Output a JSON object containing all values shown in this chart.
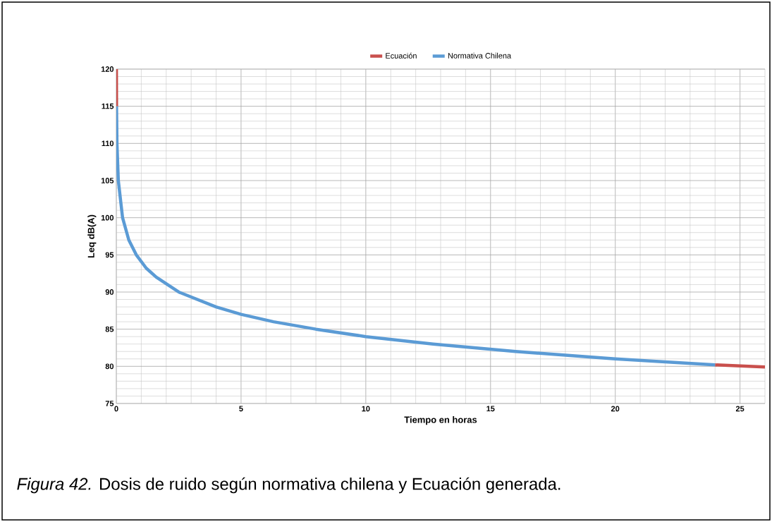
{
  "chart_data": {
    "type": "line",
    "xlabel": "Tiempo en horas",
    "ylabel": "Leq dB(A)",
    "xlim": [
      0,
      26
    ],
    "ylim": [
      75,
      120
    ],
    "xticks": [
      0,
      5,
      10,
      15,
      20,
      25
    ],
    "yticks": [
      75,
      80,
      85,
      90,
      95,
      100,
      105,
      110,
      115,
      120
    ],
    "grid": true,
    "legend": "top",
    "marker": "none",
    "line_style": "solid",
    "series": [
      {
        "name": "Ecuación",
        "color": "#c9504d",
        "x": [
          0.0025,
          0.008,
          0.025,
          0.08,
          0.25,
          0.5,
          0.8,
          1.2,
          1.6,
          2.5,
          4,
          5,
          6.3,
          8,
          10,
          12.7,
          16,
          20,
          24,
          26
        ],
        "values": [
          120,
          115,
          null,
          null,
          null,
          null,
          null,
          null,
          null,
          null,
          null,
          null,
          null,
          null,
          null,
          null,
          null,
          null,
          80.2,
          79.9
        ]
      },
      {
        "name": "Normativa Chilena",
        "color": "#5b9bd5",
        "x": [
          0.008,
          0.025,
          0.08,
          0.25,
          0.5,
          0.8,
          1.2,
          1.6,
          2.5,
          4,
          5,
          6.3,
          8,
          10,
          12.7,
          16,
          20,
          24
        ],
        "values": [
          115,
          110,
          105,
          100,
          97,
          95,
          93.2,
          92,
          90,
          88,
          87,
          86,
          85,
          84,
          83,
          82,
          81,
          80.2
        ]
      }
    ],
    "annotations": [
      "*Figura 42.* Dosis de ruido según normativa chilena y Ecuación generada."
    ]
  }
}
